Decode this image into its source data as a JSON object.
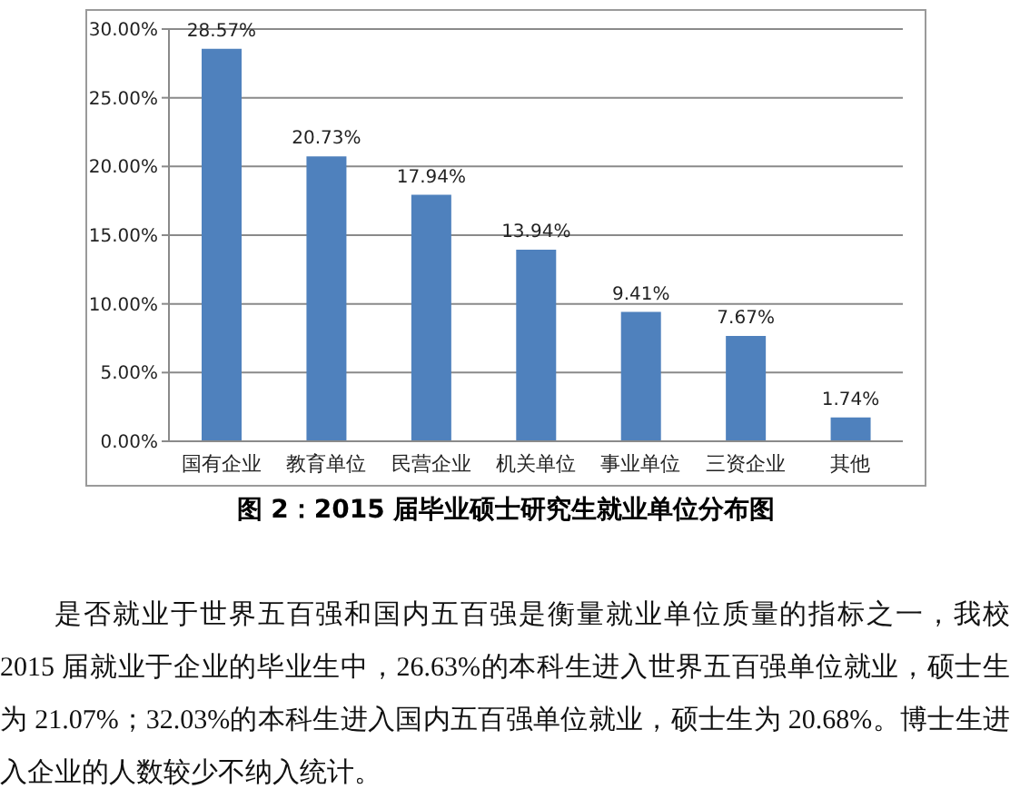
{
  "chart_data": {
    "type": "bar",
    "title": "图 2：2015 届毕业硕士研究生就业单位分布图",
    "categories": [
      "国有企业",
      "教育单位",
      "民营企业",
      "机关单位",
      "事业单位",
      "三资企业",
      "其他"
    ],
    "values": [
      28.57,
      20.73,
      17.94,
      13.94,
      9.41,
      7.67,
      1.74
    ],
    "color": "#4f81bd",
    "value_labels": [
      "28.57%",
      "20.73%",
      "17.94%",
      "13.94%",
      "9.41%",
      "7.67%",
      "1.74%"
    ],
    "ylim": [
      0,
      30
    ],
    "yticks": [
      {
        "value": 0,
        "label": "0.00%"
      },
      {
        "value": 5,
        "label": "5.00%"
      },
      {
        "value": 10,
        "label": "10.00%"
      },
      {
        "value": 15,
        "label": "15.00%"
      },
      {
        "value": 20,
        "label": "20.00%"
      },
      {
        "value": 25,
        "label": "25.00%"
      },
      {
        "value": 30,
        "label": "30.00%"
      }
    ],
    "grid": "y",
    "annotations": [
      "是否就业于世界五百强和国内五百强是衡量就业单位质量的指标之一，我校 2015 届就业于企业的毕业生中，26.63%的本科生进入世界五百强单位就业，硕士生为 21.07%；32.03%的本科生进入国内五百强单位就业，硕士生为 20.68%。博士生进入企业的人数较少不纳入统计。"
    ]
  }
}
